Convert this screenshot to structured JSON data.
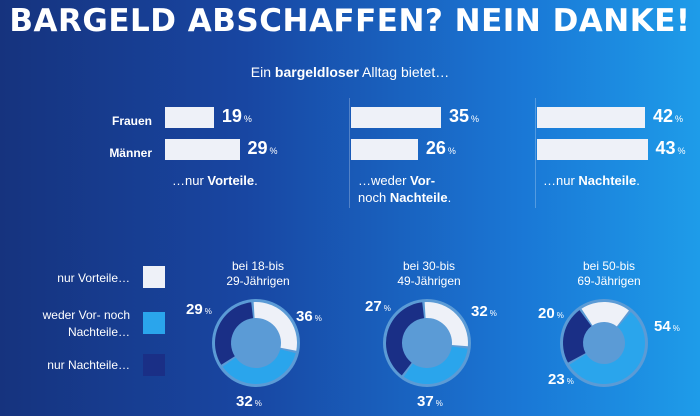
{
  "title": "BARGELD ABSCHAFFEN? NEIN DANKE!",
  "subtitle": {
    "pre": "Ein ",
    "bold": "bargeldloser",
    "post": " Alltag bietet…"
  },
  "row_labels": [
    "Frauen",
    "Männer"
  ],
  "percent_sign": "%",
  "chart_data": [
    {
      "type": "bar",
      "categories": [
        "Frauen",
        "Männer"
      ],
      "series": [
        {
          "name": "…nur Vorteile.",
          "values": [
            19,
            29
          ]
        },
        {
          "name": "…weder Vor- noch Nachteile.",
          "values": [
            35,
            26
          ]
        },
        {
          "name": "…nur Nachteile.",
          "values": [
            42,
            43
          ]
        }
      ],
      "unit": "%"
    },
    {
      "type": "pie",
      "groups": [
        "bei 18-bis 29-Jährigen",
        "bei 30-bis 49-Jährigen",
        "bei 50-bis 69-Jährigen"
      ],
      "legend": [
        "nur Vorteile…",
        "weder Vor- noch Nachteile…",
        "nur Nachteile…"
      ],
      "series": [
        {
          "group": "bei 18-bis 29-Jährigen",
          "values": [
            29,
            36,
            32
          ]
        },
        {
          "group": "bei 30-bis 49-Jährigen",
          "values": [
            27,
            32,
            37
          ]
        },
        {
          "group": "bei 50-bis 69-Jährigen",
          "values": [
            20,
            54,
            23
          ]
        }
      ],
      "unit": "%"
    }
  ],
  "captions": {
    "vorteile": {
      "pre": "…nur ",
      "bold": "Vorteile",
      "post": "."
    },
    "weder": {
      "line1": "…weder ",
      "bold1": "Vor-",
      "line2": "noch ",
      "bold2": "Nachteile",
      "post": "."
    },
    "nachteile": {
      "pre": "…nur ",
      "bold": "Nachteile",
      "post": "."
    }
  },
  "legend": {
    "vorteile": "nur Vorteile…",
    "weder_line1": "weder Vor- noch",
    "weder_line2": "Nachteile…",
    "nachteile": "nur Nachteile…"
  },
  "groups": [
    {
      "line1": "bei 18-bis",
      "line2": "29-Jährigen"
    },
    {
      "line1": "bei 30-bis",
      "line2": "49-Jährigen"
    },
    {
      "line1": "bei 50-bis",
      "line2": "69-Jährigen"
    }
  ],
  "colors": {
    "vorteile": "#eef1f8",
    "weder": "#2aa5ec",
    "nachteile": "#1a2f86",
    "donut_center": "#5b9bd6"
  }
}
